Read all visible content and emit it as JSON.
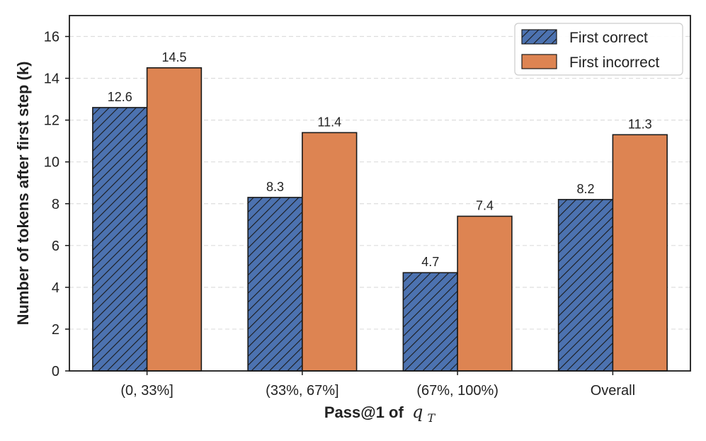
{
  "chart_data": {
    "type": "bar",
    "title": "",
    "xlabel": "Pass@1 of",
    "xlabel_math": "q",
    "xlabel_math_sub": "T",
    "ylabel": "Number of tokens after first step (k)",
    "ylim": [
      0,
      17
    ],
    "yticks": [
      0,
      2,
      4,
      6,
      8,
      10,
      12,
      14,
      16
    ],
    "grid": true,
    "legend_position": "top-right",
    "categories": [
      "(0, 33%]",
      "(33%, 67%]",
      "(67%, 100%)",
      "Overall"
    ],
    "series": [
      {
        "name": "First correct",
        "values": [
          12.6,
          8.3,
          4.7,
          8.2
        ],
        "labels": [
          "12.6",
          "8.3",
          "4.7",
          "8.2"
        ],
        "color": "#4C72B0",
        "hatch": "diagonal"
      },
      {
        "name": "First incorrect",
        "values": [
          14.5,
          11.4,
          7.4,
          11.3
        ],
        "labels": [
          "14.5",
          "11.4",
          "7.4",
          "11.3"
        ],
        "color": "#DD8452",
        "hatch": "none"
      }
    ]
  }
}
